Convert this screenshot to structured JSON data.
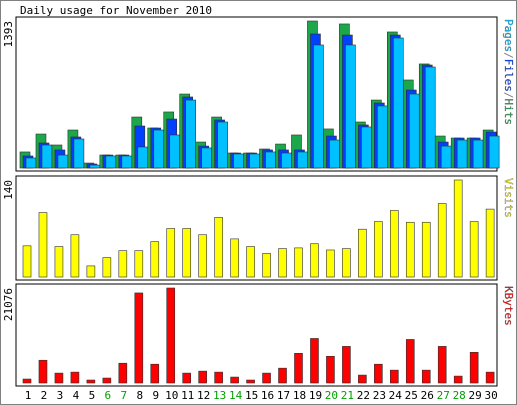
{
  "chart_data": [
    {
      "type": "bar",
      "title": "Daily usage for November 2010",
      "categories": [
        "1",
        "2",
        "3",
        "4",
        "5",
        "6",
        "7",
        "8",
        "9",
        "10",
        "11",
        "12",
        "13",
        "14",
        "15",
        "16",
        "17",
        "18",
        "19",
        "20",
        "21",
        "22",
        "23",
        "24",
        "25",
        "26",
        "27",
        "28",
        "29",
        "30"
      ],
      "legend_separator": "/",
      "series": [
        {
          "name": "Pages",
          "color": "#00c0ff",
          "values": [
            95,
            218,
            123,
            275,
            28,
            114,
            114,
            199,
            360,
            313,
            644,
            190,
            436,
            133,
            133,
            152,
            142,
            152,
            1166,
            265,
            1166,
            389,
            588,
            1232,
            701,
            957,
            208,
            265,
            265,
            303
          ]
        },
        {
          "name": "Files",
          "color": "#0040ff",
          "values": [
            114,
            237,
            171,
            294,
            38,
            123,
            123,
            398,
            379,
            464,
            673,
            208,
            455,
            142,
            142,
            171,
            171,
            171,
            1270,
            303,
            1260,
            408,
            616,
            1260,
            739,
            976,
            246,
            284,
            284,
            341
          ]
        },
        {
          "name": "Hits",
          "color": "#1ca84a",
          "values": [
            152,
            322,
            218,
            360,
            47,
            123,
            123,
            483,
            379,
            531,
            701,
            246,
            483,
            142,
            142,
            180,
            227,
            313,
            1393,
            370,
            1365,
            436,
            644,
            1289,
            834,
            986,
            303,
            284,
            284,
            360
          ]
        }
      ],
      "ylim": [
        0,
        1393
      ],
      "yticks": [
        1393
      ]
    },
    {
      "type": "bar",
      "categories": [
        "1",
        "2",
        "3",
        "4",
        "5",
        "6",
        "7",
        "8",
        "9",
        "10",
        "11",
        "12",
        "13",
        "14",
        "15",
        "16",
        "17",
        "18",
        "19",
        "20",
        "21",
        "22",
        "23",
        "24",
        "25",
        "26",
        "27",
        "28",
        "29",
        "30"
      ],
      "series": [
        {
          "name": "Visits",
          "color": "#ffff00",
          "values": [
            45,
            93,
            44,
            61,
            16,
            28,
            38,
            38,
            51,
            70,
            70,
            61,
            86,
            55,
            44,
            34,
            41,
            42,
            48,
            39,
            41,
            69,
            80,
            96,
            79,
            79,
            106,
            140,
            80,
            98
          ]
        }
      ],
      "ylim": [
        0,
        140
      ],
      "yticks": [
        140
      ]
    },
    {
      "type": "bar",
      "categories": [
        "1",
        "2",
        "3",
        "4",
        "5",
        "6",
        "7",
        "8",
        "9",
        "10",
        "11",
        "12",
        "13",
        "14",
        "15",
        "16",
        "17",
        "18",
        "19",
        "20",
        "21",
        "22",
        "23",
        "24",
        "25",
        "26",
        "27",
        "28",
        "29",
        "30"
      ],
      "highlight_categories": [
        "6",
        "7",
        "13",
        "14",
        "20",
        "21",
        "27",
        "28"
      ],
      "highlight_color": "#00a000",
      "series": [
        {
          "name": "KBytes",
          "color": "#ff0000",
          "values": [
            878,
            5050,
            2195,
            2415,
            659,
            1098,
            4391,
            19979,
            4171,
            21076,
            2195,
            2634,
            2415,
            1317,
            659,
            2195,
            3293,
            6586,
            9880,
            5928,
            8123,
            1756,
            4171,
            2854,
            9660,
            2854,
            8123,
            1537,
            6806,
            2415
          ]
        }
      ],
      "ylim": [
        0,
        21076
      ],
      "yticks": [
        21076
      ]
    }
  ]
}
